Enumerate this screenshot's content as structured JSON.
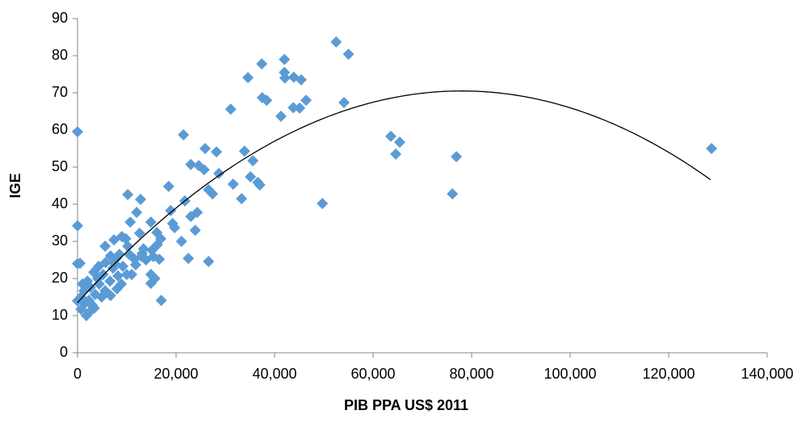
{
  "chart_data": {
    "type": "scatter",
    "x_label": "PIB PPA US$ 2011",
    "y_label": "IGE",
    "xlim": [
      0,
      140000
    ],
    "ylim": [
      0,
      90
    ],
    "xticks": [
      0,
      {
        "value": 20000,
        "label": "20,000"
      },
      {
        "value": 40000,
        "label": "40,000"
      },
      {
        "value": 60000,
        "label": "60,000"
      },
      {
        "value": 80000,
        "label": "80,000"
      },
      {
        "value": 100000,
        "label": "100,000"
      },
      {
        "value": 120000,
        "label": "120,000"
      },
      {
        "value": 140000,
        "label": "140,000"
      }
    ],
    "yticks": [
      0,
      10,
      20,
      30,
      40,
      50,
      60,
      70,
      80,
      90
    ],
    "grid": false,
    "series": [
      {
        "color": "#5b9bd5",
        "x": [
          0,
          0,
          0,
          0,
          52500,
          55000,
          42000,
          37400,
          34600,
          42000,
          42100,
          43900,
          45400,
          37500,
          38400,
          46400,
          43800,
          45100,
          54100,
          31100,
          41300,
          63600,
          65400,
          64600,
          76900,
          76100,
          128700,
          49700,
          21500,
          25900,
          28200,
          33900,
          35600,
          23000,
          24600,
          25700,
          28700,
          35100,
          36600,
          37000,
          31600,
          18500,
          26600,
          27400,
          33300,
          10200,
          12800,
          21800,
          24300,
          23000,
          18900,
          12000,
          10700,
          14900,
          19300,
          19700,
          23900,
          12600,
          9000,
          7400,
          21100,
          16900,
          16200,
          5600,
          10200,
          13400,
          15100,
          22500,
          26600,
          16600,
          13000,
          11600,
          14900,
          14900,
          15700,
          17000,
          11000,
          9200,
          7900,
          6700,
          5700,
          4300,
          3300,
          2000,
          1300,
          500,
          700,
          1800,
          2500,
          3400,
          1500,
          1000,
          2600,
          4400,
          5600,
          6700,
          8200,
          7200,
          8900,
          10000,
          4100,
          5200,
          6600,
          8000,
          2300,
          3600,
          4900,
          700,
          3000,
          7500,
          8500,
          10500,
          11800,
          13900,
          15400,
          16100,
          9800,
          13100
        ],
        "values": [
          59.5,
          34.2,
          24,
          14,
          83.7,
          80.4,
          79,
          77.8,
          74.1,
          75.5,
          74,
          74.2,
          73.5,
          68.7,
          68,
          68,
          66,
          65.9,
          67.4,
          65.6,
          63.7,
          58.3,
          56.7,
          53.5,
          52.8,
          42.8,
          55,
          40.2,
          58.7,
          55,
          54.1,
          54.3,
          51.7,
          50.7,
          50.4,
          49.3,
          48.3,
          47.4,
          45.9,
          45.2,
          45.4,
          44.8,
          43.9,
          42.8,
          41.5,
          42.6,
          41.3,
          40.9,
          37.8,
          36.7,
          38.3,
          37.8,
          35.2,
          35.2,
          34.8,
          33.7,
          33,
          32.2,
          31.3,
          30.4,
          30,
          30.7,
          29.1,
          28.7,
          28.7,
          28,
          27.6,
          25.4,
          24.6,
          25.2,
          25.9,
          25.2,
          21.1,
          18.7,
          20,
          14.1,
          21.1,
          23.3,
          25.4,
          26.1,
          24.3,
          23.3,
          21.7,
          19.3,
          16.7,
          24.1,
          15,
          10,
          11.1,
          12,
          13.3,
          18.5,
          17.6,
          18.5,
          16.7,
          15.4,
          20.7,
          22.8,
          18.5,
          21.1,
          20,
          21.1,
          19.3,
          17.2,
          14.1,
          15.7,
          15,
          11.7,
          12.8,
          24.1,
          26.5,
          26.5,
          23.7,
          25,
          25.9,
          32.4,
          30.7,
          26.7
        ]
      }
    ],
    "trendline": {
      "type": "polynomial",
      "order": 2,
      "coefficients": [
        13.5,
        0.0014616,
        -9.369e-09
      ],
      "xrange": [
        0,
        128500
      ],
      "color": "#000000"
    }
  }
}
